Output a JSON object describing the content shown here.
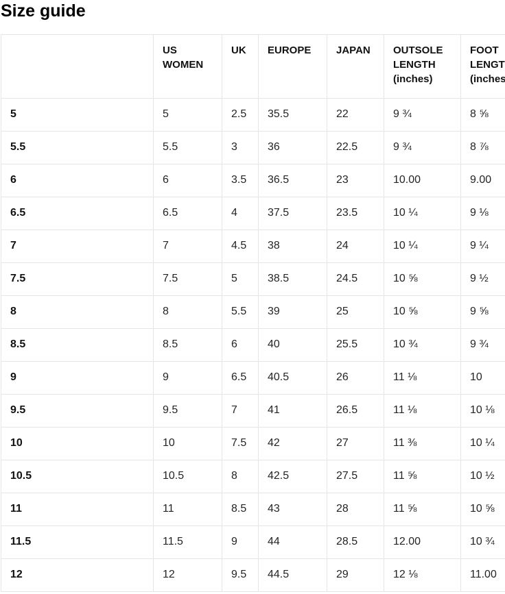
{
  "page_title": "Size guide",
  "colors": {
    "background": "#ffffff",
    "border": "#e5e5e5",
    "heading_text": "#000000",
    "body_text": "#242424"
  },
  "table": {
    "headers": [
      "",
      "US WOMEN",
      "UK",
      "EUROPE",
      "JAPAN",
      "OUTSOLE LENGTH (inches)",
      "FOOT LENGTH (inches)"
    ],
    "column_keys": [
      "size-label",
      "us-women",
      "uk",
      "europe",
      "japan",
      "outsole-length",
      "foot-length"
    ],
    "rows": [
      [
        "5",
        "5",
        "2.5",
        "35.5",
        "22",
        "9 ¾",
        "8 ⅝"
      ],
      [
        "5.5",
        "5.5",
        "3",
        "36",
        "22.5",
        "9 ¾",
        "8 ⅞"
      ],
      [
        "6",
        "6",
        "3.5",
        "36.5",
        "23",
        "10.00",
        "9.00"
      ],
      [
        "6.5",
        "6.5",
        "4",
        "37.5",
        "23.5",
        "10 ¼",
        "9 ⅛"
      ],
      [
        "7",
        "7",
        "4.5",
        "38",
        "24",
        "10 ¼",
        "9 ¼"
      ],
      [
        "7.5",
        "7.5",
        "5",
        "38.5",
        "24.5",
        "10 ⅝",
        "9 ½"
      ],
      [
        "8",
        "8",
        "5.5",
        "39",
        "25",
        "10 ⅝",
        "9 ⅝"
      ],
      [
        "8.5",
        "8.5",
        "6",
        "40",
        "25.5",
        "10 ¾",
        "9 ¾"
      ],
      [
        "9",
        "9",
        "6.5",
        "40.5",
        "26",
        "11 ⅛",
        "10"
      ],
      [
        "9.5",
        "9.5",
        "7",
        "41",
        "26.5",
        "11 ⅛",
        "10 ⅛"
      ],
      [
        "10",
        "10",
        "7.5",
        "42",
        "27",
        "11 ⅜",
        "10 ¼"
      ],
      [
        "10.5",
        "10.5",
        "8",
        "42.5",
        "27.5",
        "11 ⅝",
        "10 ½"
      ],
      [
        "11",
        "11",
        "8.5",
        "43",
        "28",
        "11 ⅝",
        "10 ⅝"
      ],
      [
        "11.5",
        "11.5",
        "9",
        "44",
        "28.5",
        "12.00",
        "10 ¾"
      ],
      [
        "12",
        "12",
        "9.5",
        "44.5",
        "29",
        "12 ⅛",
        "11.00"
      ]
    ]
  }
}
